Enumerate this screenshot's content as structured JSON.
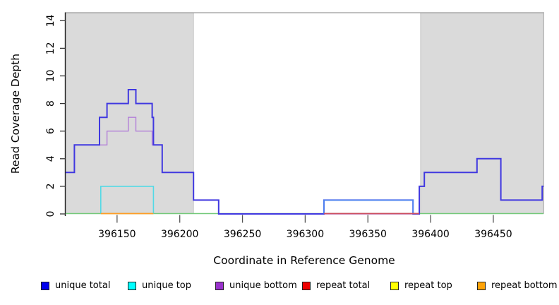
{
  "figure": {
    "y_axis_label": "Read Coverage Depth",
    "x_axis_label": "Coordinate in Reference Genome"
  },
  "legend": {
    "items": [
      {
        "label": "unique total",
        "color": "#0000ee"
      },
      {
        "label": "unique top",
        "color": "#00ffff"
      },
      {
        "label": "unique bottom",
        "color": "#9932cc"
      },
      {
        "label": "repeat total",
        "color": "#ee0000"
      },
      {
        "label": "repeat top",
        "color": "#ffff00"
      },
      {
        "label": "repeat bottom",
        "color": "#ffa308"
      }
    ]
  },
  "chart_data": {
    "type": "line",
    "subtype": "step-coverage",
    "title": "",
    "xlabel": "Coordinate in Reference Genome",
    "ylabel": "Read Coverage Depth",
    "xlim": [
      396109,
      396490
    ],
    "ylim": [
      0,
      14
    ],
    "x_ticks": [
      396150,
      396200,
      396250,
      396300,
      396350,
      396400,
      396450
    ],
    "y_ticks": [
      0,
      2,
      4,
      6,
      8,
      10,
      12,
      14
    ],
    "grid": false,
    "legend_position": "bottom",
    "shaded_regions": [
      {
        "x_start": 396109,
        "x_end": 396211,
        "color": "#dadada"
      },
      {
        "x_start": 396392,
        "x_end": 396490,
        "color": "#dadada"
      }
    ],
    "series": [
      {
        "name": "unique total",
        "legend_color": "#0000ee",
        "line_color": "#4038e0",
        "step_points": [
          [
            396109,
            3
          ],
          [
            396116,
            5
          ],
          [
            396136,
            7
          ],
          [
            396142,
            8
          ],
          [
            396159,
            9
          ],
          [
            396165,
            8
          ],
          [
            396178,
            7
          ],
          [
            396179,
            5
          ],
          [
            396186,
            3
          ],
          [
            396211,
            1
          ],
          [
            396231,
            0
          ],
          [
            396315,
            1
          ],
          [
            396386,
            0
          ],
          [
            396391,
            2
          ],
          [
            396395,
            3
          ],
          [
            396437,
            4
          ],
          [
            396456,
            1
          ],
          [
            396489,
            2
          ]
        ],
        "end": 396490
      },
      {
        "name": "unique top",
        "legend_color": "#00ffff",
        "step_points": [
          [
            396109,
            0
          ],
          [
            396137,
            2
          ],
          [
            396179,
            0
          ],
          [
            396315,
            1
          ],
          [
            396386,
            0
          ]
        ],
        "end": 396490,
        "boxes": [
          {
            "from": 396137,
            "to": 396179,
            "height": 2,
            "display_color": "#52d9e6"
          },
          {
            "from": 396315,
            "to": 396386,
            "height": 1,
            "display_color": "#4f8df2"
          }
        ]
      },
      {
        "name": "unique bottom",
        "legend_color": "#9932cc",
        "line_color": "#b27fd8",
        "step_points": [
          [
            396109,
            3
          ],
          [
            396116,
            5
          ],
          [
            396142,
            6
          ],
          [
            396159,
            7
          ],
          [
            396165,
            6
          ],
          [
            396178,
            5
          ],
          [
            396186,
            3
          ],
          [
            396211,
            1
          ],
          [
            396231,
            0
          ],
          [
            396391,
            2
          ],
          [
            396395,
            3
          ],
          [
            396437,
            4
          ],
          [
            396456,
            1
          ],
          [
            396489,
            2
          ]
        ],
        "end": 396490
      },
      {
        "name": "repeat total",
        "legend_color": "#ee0000",
        "step_points": [
          [
            396109,
            0
          ]
        ],
        "end": 396490,
        "visible_segment": {
          "from": 396315,
          "to": 396391,
          "display_color": "#cc4d60"
        }
      },
      {
        "name": "repeat top",
        "legend_color": "#ffff00",
        "step_points": [
          [
            396109,
            0
          ]
        ],
        "end": 396490
      },
      {
        "name": "repeat bottom",
        "legend_color": "#ffa308",
        "step_points": [
          [
            396109,
            0
          ]
        ],
        "end": 396490,
        "visible_segment": {
          "from": 396137,
          "to": 396179,
          "display_color": "#ff9d26"
        }
      }
    ],
    "baseline_color": "#74c97a"
  }
}
